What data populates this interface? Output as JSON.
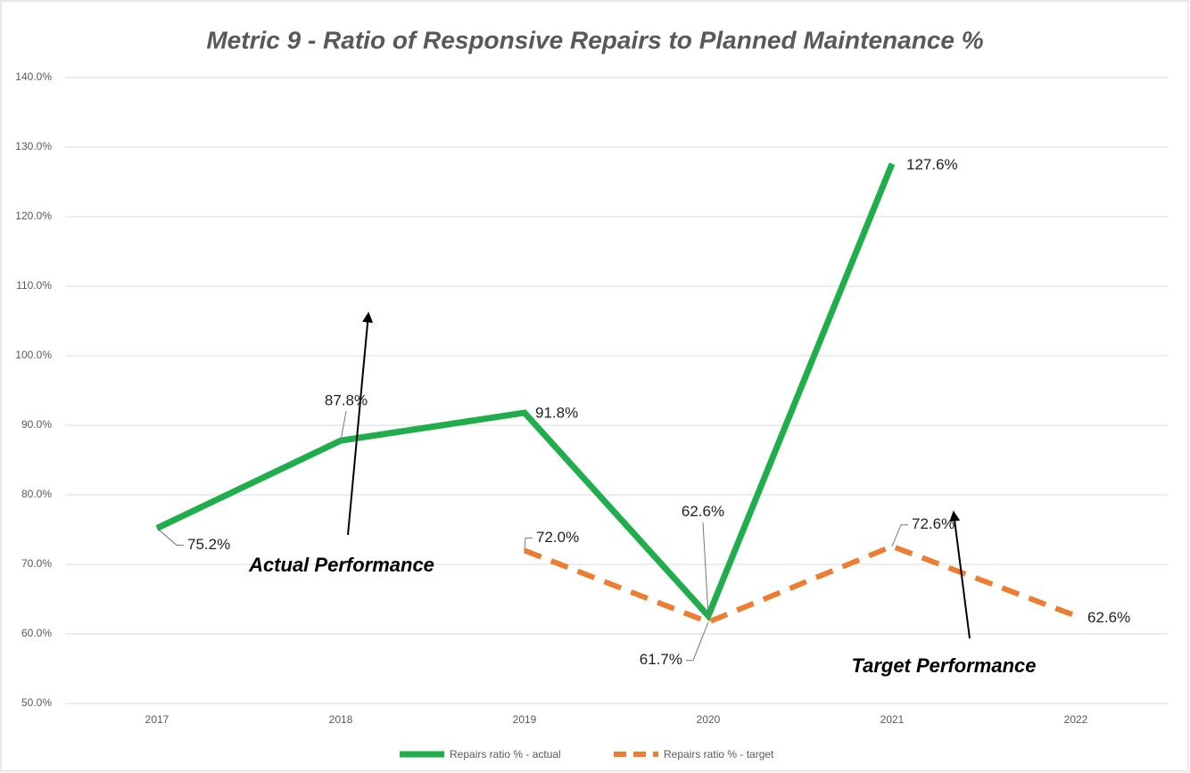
{
  "chart_data": {
    "type": "line",
    "title": "Metric 9 - Ratio of Responsive Repairs to Planned Maintenance %",
    "categories": [
      "2017",
      "2018",
      "2019",
      "2020",
      "2021",
      "2022"
    ],
    "series": [
      {
        "name": "Repairs ratio % - actual",
        "color": "#1fae4b",
        "values": [
          75.2,
          87.8,
          91.8,
          62.6,
          127.6,
          null
        ],
        "value_labels": [
          "75.2%",
          "87.8%",
          "91.8%",
          "62.6%",
          "127.6%",
          null
        ]
      },
      {
        "name": "Repairs ratio % - target",
        "color": "#ed7d31",
        "values": [
          null,
          null,
          72.0,
          61.7,
          72.6,
          62.6
        ],
        "value_labels": [
          null,
          null,
          "72.0%",
          "61.7%",
          "72.6%",
          "62.6%"
        ]
      }
    ],
    "ylim": [
      50,
      140
    ],
    "yticks": [
      {
        "value": 50,
        "label": "50.0%"
      },
      {
        "value": 60,
        "label": "60.0%"
      },
      {
        "value": 70,
        "label": "70.0%"
      },
      {
        "value": 80,
        "label": "80.0%"
      },
      {
        "value": 90,
        "label": "90.0%"
      },
      {
        "value": 100,
        "label": "100.0%"
      },
      {
        "value": 110,
        "label": "110.0%"
      },
      {
        "value": 120,
        "label": "120.0%"
      },
      {
        "value": 130,
        "label": "130.0%"
      },
      {
        "value": 140,
        "label": "140.0%"
      }
    ],
    "grid": true,
    "legend": "bottom",
    "annotations": [
      "Actual Performance",
      "Target Performance"
    ]
  }
}
